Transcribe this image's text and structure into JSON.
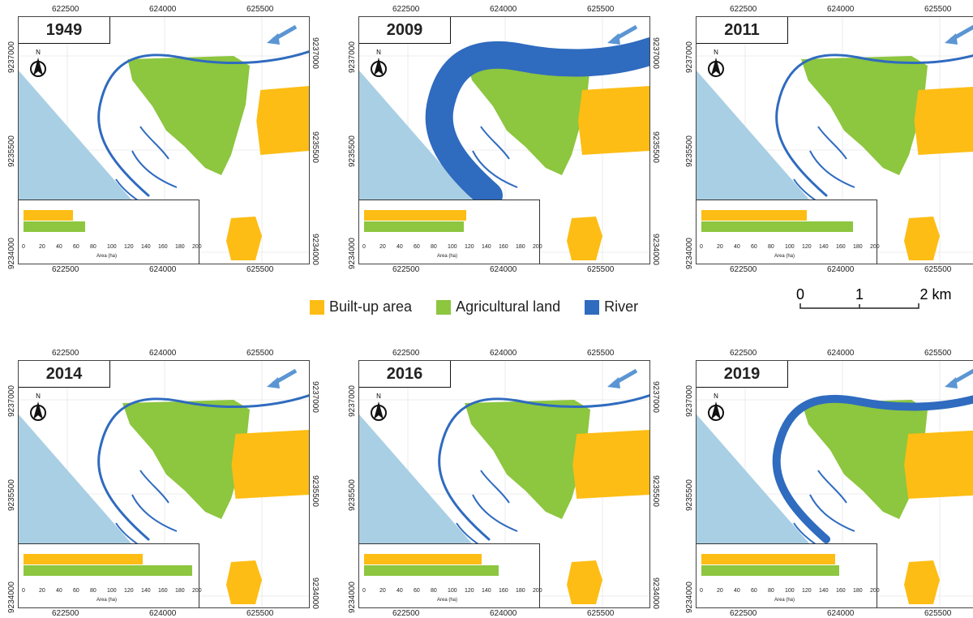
{
  "legend": {
    "items": [
      {
        "label": "Built-up area",
        "color": "#FDBD14"
      },
      {
        "label": "Agricultural land",
        "color": "#8DC63F"
      },
      {
        "label": "River",
        "color": "#2F6BBF"
      }
    ]
  },
  "scale": {
    "labels": [
      "0",
      "1",
      "2 km"
    ]
  },
  "axis": {
    "x_ticks": [
      "622500",
      "624000",
      "625500"
    ],
    "y_ticks": [
      "9237000",
      "9235500",
      "9234000"
    ],
    "inset_ticks": [
      "0",
      "20",
      "40",
      "60",
      "80",
      "100",
      "120",
      "140",
      "160",
      "180",
      "200"
    ],
    "inset_label": "Area (ha)"
  },
  "north_label": "N",
  "colors": {
    "sea": "#A9CFE4",
    "built": "#FDBD14",
    "agri": "#8DC63F",
    "river": "#2F6BBF"
  },
  "panels": [
    {
      "year": "1949",
      "built_ha": 58,
      "agri_ha": 72,
      "river": "thin"
    },
    {
      "year": "2009",
      "built_ha": 120,
      "agri_ha": 117,
      "river": "wide"
    },
    {
      "year": "2011",
      "built_ha": 124,
      "agri_ha": 178,
      "river": "thin"
    },
    {
      "year": "2014",
      "built_ha": 140,
      "agri_ha": 198,
      "river": "thin"
    },
    {
      "year": "2016",
      "built_ha": 138,
      "agri_ha": 158,
      "river": "thin"
    },
    {
      "year": "2019",
      "built_ha": 157,
      "agri_ha": 162,
      "river": "medium"
    }
  ]
}
